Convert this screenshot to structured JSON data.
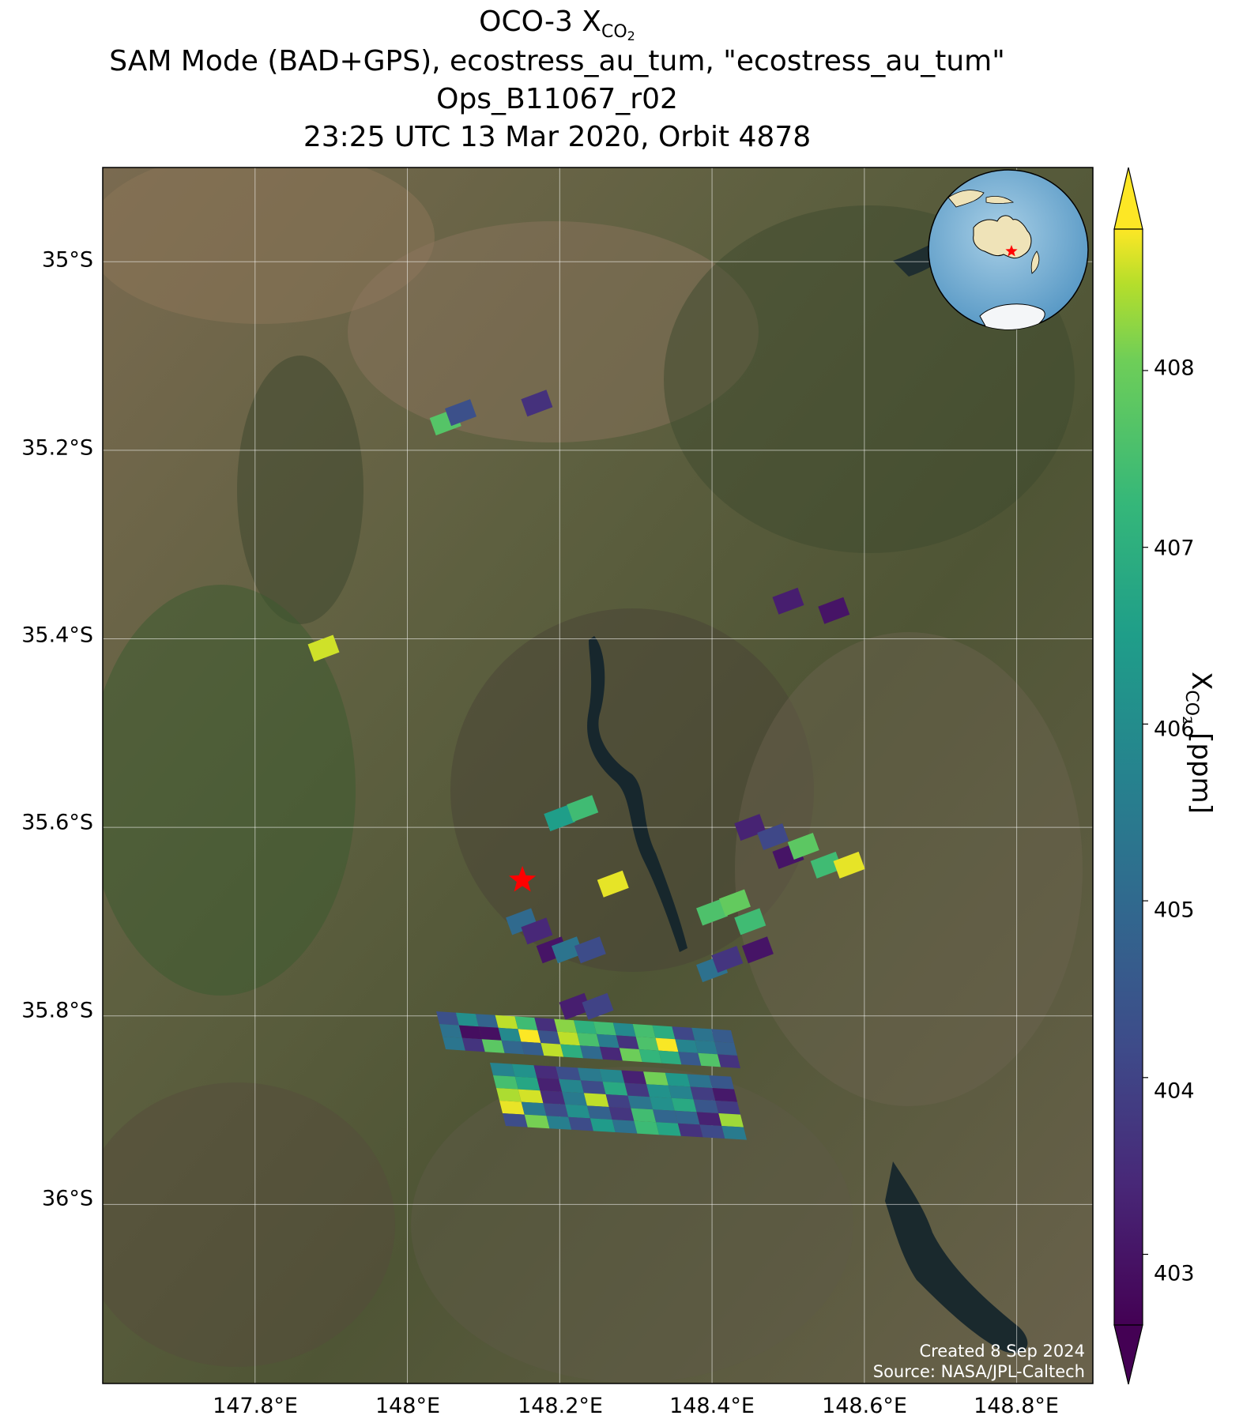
{
  "title": {
    "line1_main": "OCO-3 X",
    "line1_sub": "CO",
    "line1_subsub": "2",
    "line2": "SAM Mode (BAD+GPS), ecostress_au_tum, \"ecostress_au_tum\"",
    "line3": "Ops_B11067_r02",
    "line4": "23:25 UTC 13 Mar 2020, Orbit 4878"
  },
  "map": {
    "lat_labels": [
      "35°S",
      "35.2°S",
      "35.4°S",
      "35.6°S",
      "35.8°S",
      "36°S"
    ],
    "lon_labels": [
      "147.8°E",
      "148°E",
      "148.2°E",
      "148.4°E",
      "148.6°E",
      "148.8°E"
    ],
    "lat_range": [
      -36.19,
      -34.9
    ],
    "lon_range": [
      147.6,
      148.9
    ],
    "gridlines": true,
    "site_marker": {
      "name": "ecostress_au_tum",
      "lat": -35.656,
      "lon": 148.151,
      "color": "#ff0000"
    },
    "credit_line1": "Created 8 Sep 2024",
    "credit_line2": "Source: NASA/JPL-Caltech"
  },
  "colorbar": {
    "ticks": [
      "403",
      "404",
      "405",
      "406",
      "407",
      "408"
    ],
    "tick_values": [
      403,
      404,
      405,
      406,
      407,
      408
    ],
    "range": [
      402.6,
      408.8
    ],
    "title_main": "X",
    "title_sub": "CO",
    "title_subsub": "2",
    "title_units": " [ppm]",
    "colormap": "viridis"
  },
  "inset": {
    "description": "globe-inset",
    "star_color": "#ff0000"
  },
  "chart_data": {
    "type": "scatter",
    "xlabel": "",
    "ylabel": "",
    "series": [
      {
        "values": [
          {
            "lon": 148.05,
            "lat": -35.17,
            "xco2": 407.7
          },
          {
            "lon": 148.07,
            "lat": -35.16,
            "xco2": 404.3
          },
          {
            "lon": 148.17,
            "lat": -35.15,
            "xco2": 403.6
          },
          {
            "lon": 147.89,
            "lat": -35.41,
            "xco2": 408.6
          },
          {
            "lon": 148.5,
            "lat": -35.36,
            "xco2": 403.2
          },
          {
            "lon": 148.56,
            "lat": -35.37,
            "xco2": 403.0
          },
          {
            "lon": 148.2,
            "lat": -35.59,
            "xco2": 406.5
          },
          {
            "lon": 148.23,
            "lat": -35.58,
            "xco2": 407.4
          },
          {
            "lon": 148.27,
            "lat": -35.66,
            "xco2": 408.7
          },
          {
            "lon": 148.45,
            "lat": -35.6,
            "xco2": 403.3
          },
          {
            "lon": 148.48,
            "lat": -35.61,
            "xco2": 404.1
          },
          {
            "lon": 148.5,
            "lat": -35.63,
            "xco2": 403.0
          },
          {
            "lon": 148.52,
            "lat": -35.62,
            "xco2": 407.8
          },
          {
            "lon": 148.55,
            "lat": -35.64,
            "xco2": 407.4
          },
          {
            "lon": 148.58,
            "lat": -35.64,
            "xco2": 408.7
          },
          {
            "lon": 148.4,
            "lat": -35.69,
            "xco2": 407.6
          },
          {
            "lon": 148.43,
            "lat": -35.68,
            "xco2": 407.9
          },
          {
            "lon": 148.45,
            "lat": -35.7,
            "xco2": 407.4
          },
          {
            "lon": 148.46,
            "lat": -35.73,
            "xco2": 403.0
          },
          {
            "lon": 148.4,
            "lat": -35.75,
            "xco2": 405.2
          },
          {
            "lon": 148.42,
            "lat": -35.74,
            "xco2": 403.7
          },
          {
            "lon": 148.15,
            "lat": -35.7,
            "xco2": 405.0
          },
          {
            "lon": 148.17,
            "lat": -35.71,
            "xco2": 403.4
          },
          {
            "lon": 148.19,
            "lat": -35.73,
            "xco2": 403.0
          },
          {
            "lon": 148.21,
            "lat": -35.73,
            "xco2": 405.3
          },
          {
            "lon": 148.24,
            "lat": -35.73,
            "xco2": 404.2
          },
          {
            "lon": 148.22,
            "lat": -35.79,
            "xco2": 403.2
          },
          {
            "lon": 148.25,
            "lat": -35.79,
            "xco2": 404.0
          }
        ]
      }
    ]
  }
}
